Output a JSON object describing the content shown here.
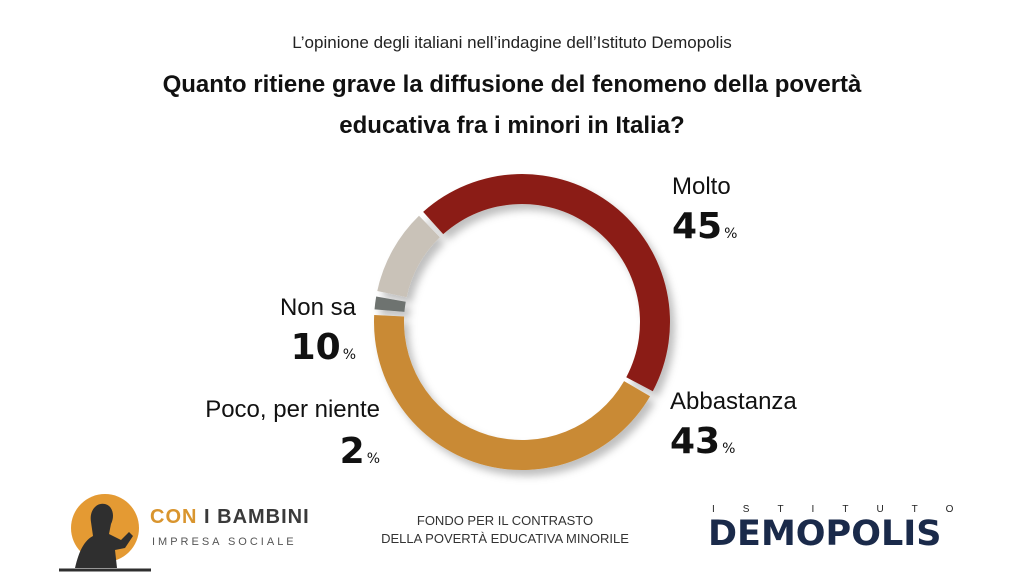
{
  "header": {
    "subtitle": "L’opinione degli italiani nell’indagine dell’Istituto Demopolis",
    "title": "Quanto ritiene grave la diffusione del fenomeno della povertà educativa fra i minori in Italia?"
  },
  "chart_data": {
    "type": "pie",
    "donut": true,
    "categories": [
      "Molto",
      "Abbastanza",
      "Poco, per niente",
      "Non sa"
    ],
    "values": [
      45,
      43,
      2,
      10
    ],
    "unit": "%",
    "colors": [
      "#8b1e14",
      "#c98a35",
      "#6e7370",
      "#c9c2b8"
    ]
  },
  "labels": {
    "molto": {
      "name": "Molto",
      "value": "45",
      "unit": "%"
    },
    "abbastanza": {
      "name": "Abbastanza",
      "value": "43",
      "unit": "%"
    },
    "poco": {
      "name": "Poco, per niente",
      "value": "2",
      "unit": "%"
    },
    "nonsa": {
      "name": "Non sa",
      "value": "10",
      "unit": "%"
    }
  },
  "footer": {
    "brand_con": "CON",
    "brand_bambini": "I BAMBINI",
    "brand_sub": "IMPRESA SOCIALE",
    "fund_line1": "FONDO PER IL CONTRASTO",
    "fund_line2": "DELLA POVERTÀ EDUCATIVA MINORILE",
    "demopolis_top": "ISTITUTO",
    "demopolis_main": "DEMOPOLIS"
  }
}
